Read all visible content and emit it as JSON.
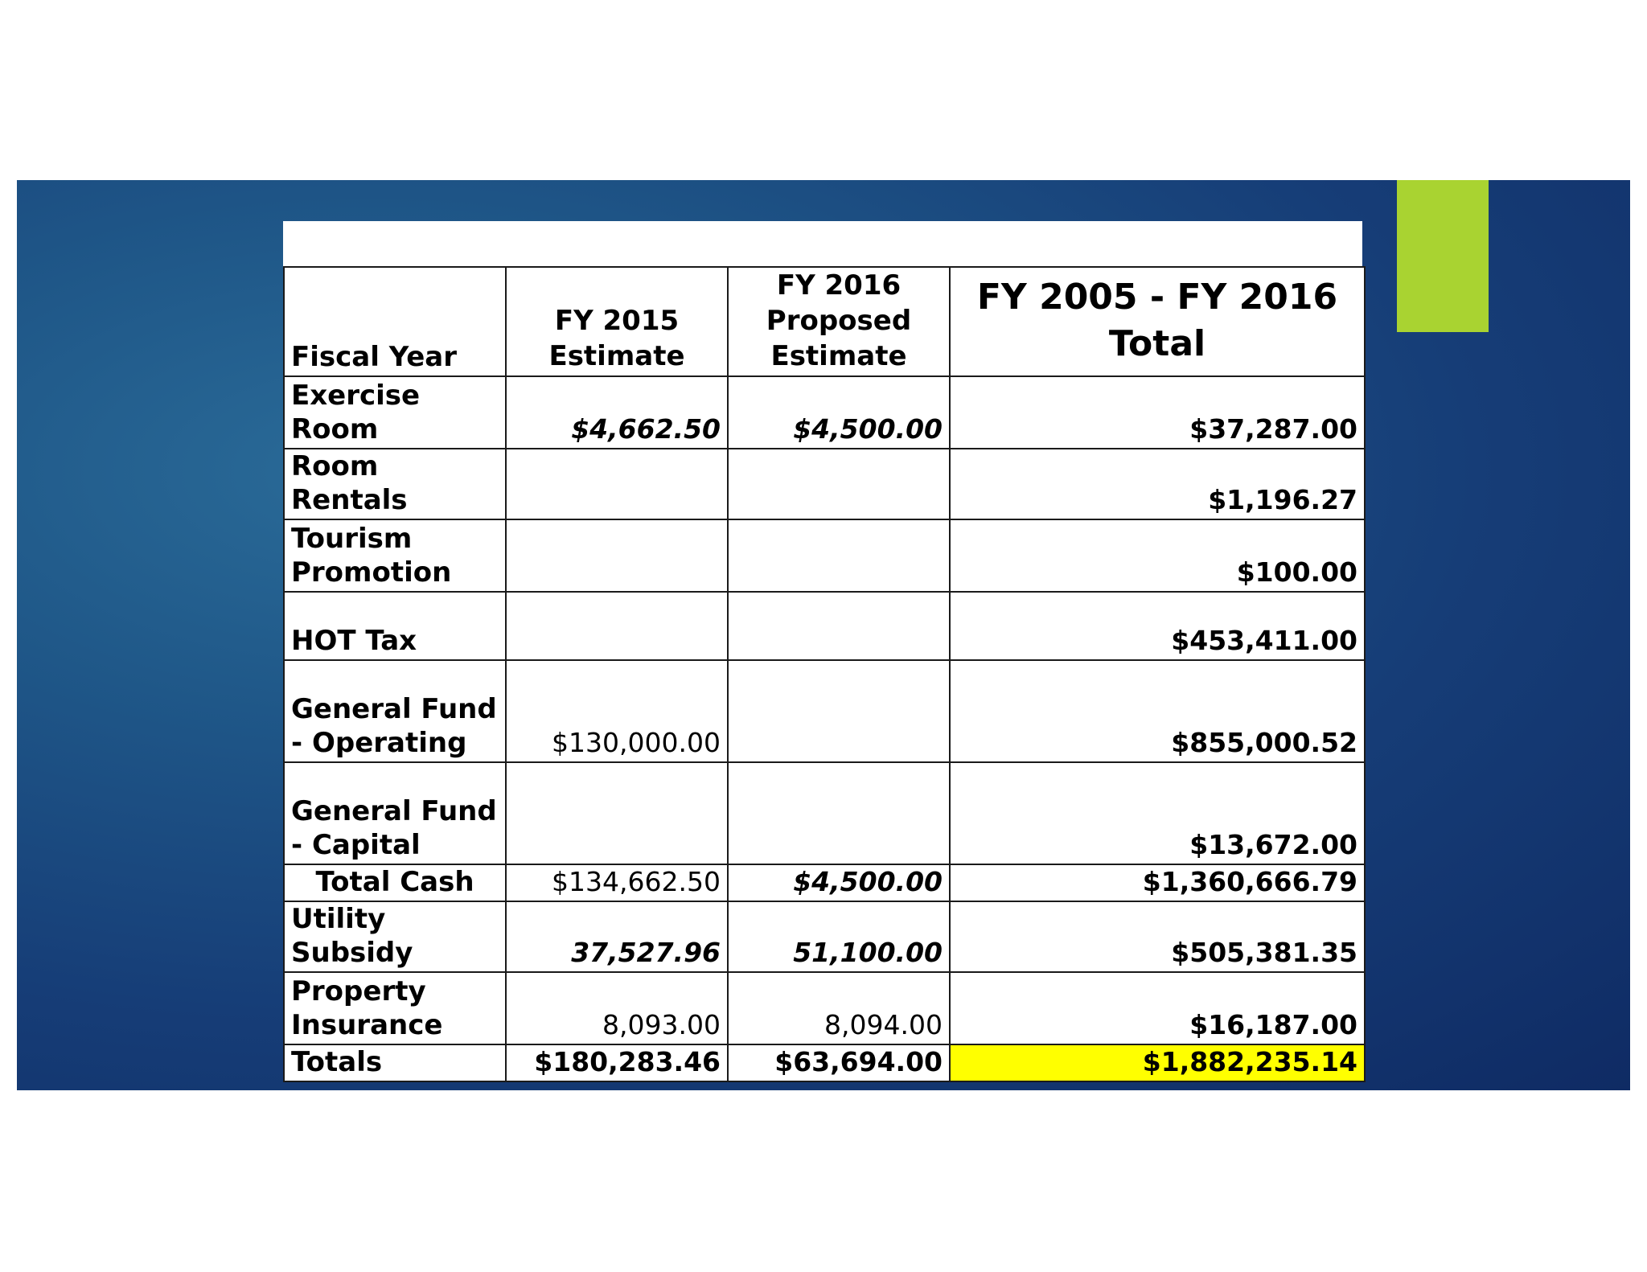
{
  "table": {
    "headers": {
      "fiscal_year": "Fiscal Year",
      "fy2015": "FY 2015 Estimate",
      "fy2016": "FY 2016 Proposed Estimate",
      "total": "FY 2005 - FY 2016 Total"
    },
    "rows": [
      {
        "label": "Exercise Room",
        "fy2015": "$4,662.50",
        "fy2016": "$4,500.00",
        "total": "$37,287.00"
      },
      {
        "label": "Room Rentals",
        "fy2015": "",
        "fy2016": "",
        "total": "$1,196.27"
      },
      {
        "label": "Tourism Promotion",
        "fy2015": "",
        "fy2016": "",
        "total": "$100.00"
      },
      {
        "label": "HOT Tax",
        "fy2015": "",
        "fy2016": "",
        "total": "$453,411.00"
      },
      {
        "label": "General Fund - Operating",
        "fy2015": "$130,000.00",
        "fy2016": "",
        "total": "$855,000.52"
      },
      {
        "label": "General Fund - Capital",
        "fy2015": "",
        "fy2016": "",
        "total": "$13,672.00"
      },
      {
        "label": "Total Cash",
        "fy2015": "$134,662.50",
        "fy2016": "$4,500.00",
        "total": "$1,360,666.79"
      },
      {
        "label": "Utility Subsidy",
        "fy2015": "37,527.96",
        "fy2016": "51,100.00",
        "total": "$505,381.35"
      },
      {
        "label": "Property Insurance",
        "fy2015": "8,093.00",
        "fy2016": "8,094.00",
        "total": "$16,187.00"
      },
      {
        "label": "Totals",
        "fy2015": "$180,283.46",
        "fy2016": "$63,694.00",
        "total": "$1,882,235.14"
      }
    ]
  },
  "colors": {
    "slide_background": "#1f5788",
    "accent_bar": "#a9d331",
    "highlight": "#ffff00"
  }
}
